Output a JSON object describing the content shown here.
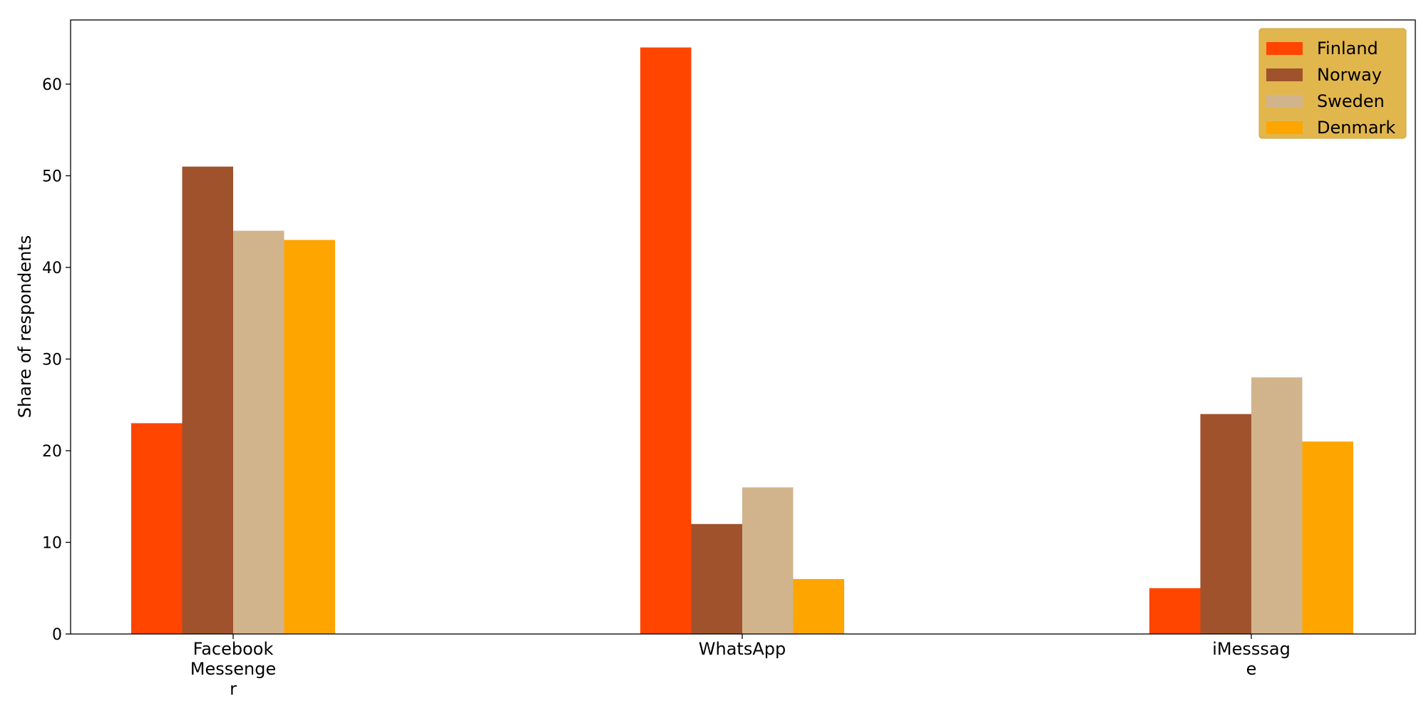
{
  "chart_data": {
    "type": "bar",
    "categories": [
      [
        "Facebook",
        "Messenge",
        "r"
      ],
      [
        "WhatsApp"
      ],
      [
        "iMesssag",
        "e"
      ]
    ],
    "xlabel": "",
    "ylabel": "Share of respondents",
    "ylim": [
      0,
      67
    ],
    "yticks": [
      0,
      10,
      20,
      30,
      40,
      50,
      60
    ],
    "grid": false,
    "legend_position": "top-right",
    "legend_background": "#E1B64D",
    "series": [
      {
        "name": "Finland",
        "color": "#FF4500",
        "values": [
          23,
          64,
          5
        ]
      },
      {
        "name": "Norway",
        "color": "#A0522D",
        "values": [
          51,
          12,
          24
        ]
      },
      {
        "name": "Sweden",
        "color": "#D2B48C",
        "values": [
          44,
          16,
          28
        ]
      },
      {
        "name": "Denmark",
        "color": "#FFA500",
        "values": [
          43,
          6,
          21
        ]
      }
    ]
  }
}
